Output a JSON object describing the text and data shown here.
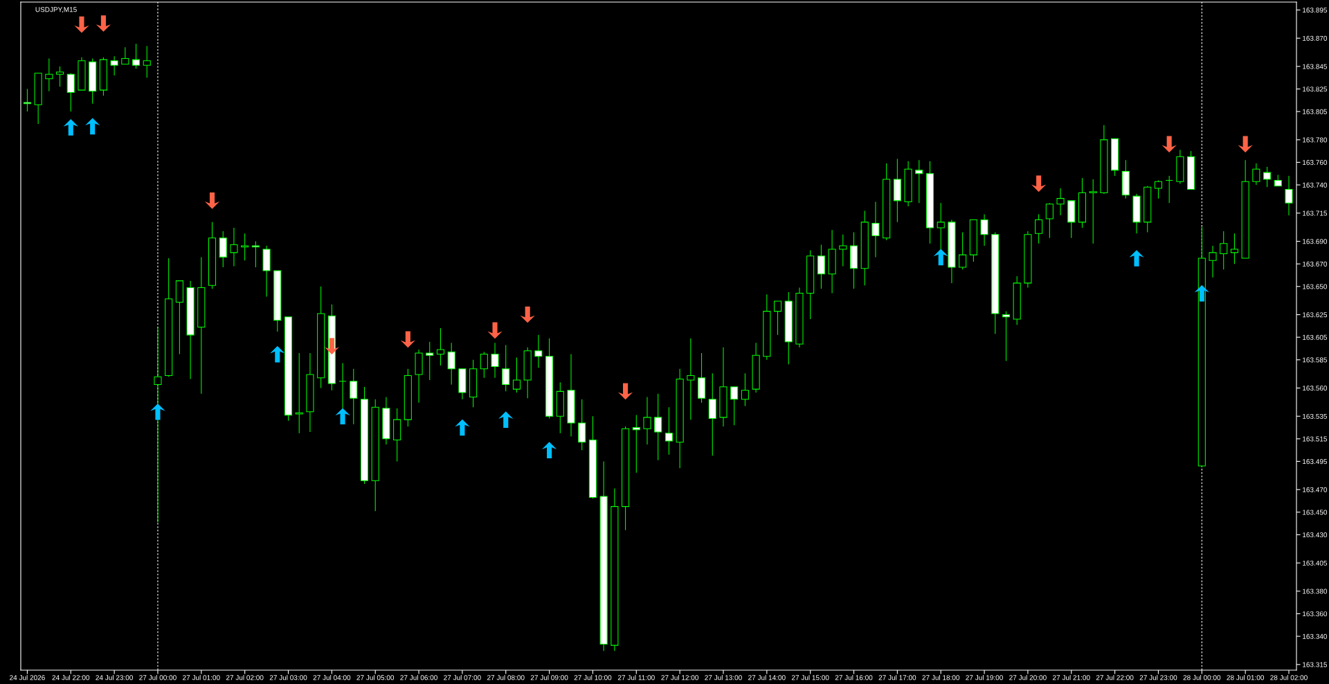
{
  "chart_data": {
    "type": "candlestick",
    "title": "USDJPY,M15",
    "categories": [
      "24 Jul 2026",
      null,
      null,
      null,
      "24 Jul 22:00",
      null,
      null,
      null,
      "24 Jul 23:00",
      null,
      null,
      null,
      "27 Jul 00:00",
      null,
      null,
      null,
      "27 Jul 01:00",
      null,
      null,
      null,
      "27 Jul 02:00",
      null,
      null,
      null,
      "27 Jul 03:00",
      null,
      null,
      null,
      "27 Jul 04:00",
      null,
      null,
      null,
      "27 Jul 05:00",
      null,
      null,
      null,
      "27 Jul 06:00",
      null,
      null,
      null,
      "27 Jul 07:00",
      null,
      null,
      null,
      "27 Jul 08:00",
      null,
      null,
      null,
      "27 Jul 09:00",
      null,
      null,
      null,
      "27 Jul 10:00",
      null,
      null,
      null,
      "27 Jul 11:00",
      null,
      null,
      null,
      "27 Jul 12:00",
      null,
      null,
      null,
      "27 Jul 13:00",
      null,
      null,
      null,
      "27 Jul 14:00",
      null,
      null,
      null,
      "27 Jul 15:00",
      null,
      null,
      null,
      "27 Jul 16:00",
      null,
      null,
      null,
      "27 Jul 17:00",
      null,
      null,
      null,
      "27 Jul 18:00",
      null,
      null,
      null,
      "27 Jul 19:00",
      null,
      null,
      null,
      "27 Jul 20:00",
      null,
      null,
      null,
      "27 Jul 21:00",
      null,
      null,
      null,
      "27 Jul 22:00",
      null,
      null,
      null,
      "27 Jul 23:00",
      null,
      null,
      null,
      "28 Jul 00:00",
      null,
      null,
      null,
      "28 Jul 01:00",
      null,
      null,
      null,
      "28 Jul 02:00"
    ],
    "ohlc": [
      [
        163.813,
        163.825,
        163.805,
        163.812
      ],
      [
        163.811,
        163.839,
        163.794,
        163.839
      ],
      [
        163.834,
        163.852,
        163.823,
        163.838
      ],
      [
        163.838,
        163.845,
        163.827,
        163.84
      ],
      [
        163.838,
        163.839,
        163.805,
        163.822
      ],
      [
        163.824,
        163.853,
        163.824,
        163.85
      ],
      [
        163.849,
        163.852,
        163.812,
        163.823
      ],
      [
        163.824,
        163.853,
        163.819,
        163.851
      ],
      [
        163.85,
        163.854,
        163.837,
        163.846
      ],
      [
        163.847,
        163.862,
        163.847,
        163.852
      ],
      [
        163.851,
        163.865,
        163.843,
        163.846
      ],
      [
        163.846,
        163.863,
        163.835,
        163.85
      ],
      [
        163.563,
        163.614,
        163.441,
        163.57
      ],
      [
        163.571,
        163.675,
        163.57,
        163.639
      ],
      [
        163.636,
        163.655,
        163.59,
        163.655
      ],
      [
        163.649,
        163.655,
        163.568,
        163.607
      ],
      [
        163.614,
        163.676,
        163.555,
        163.649
      ],
      [
        163.651,
        163.707,
        163.648,
        163.693
      ],
      [
        163.693,
        163.699,
        163.667,
        163.676
      ],
      [
        163.68,
        163.702,
        163.668,
        163.687
      ],
      [
        163.685,
        163.697,
        163.673,
        163.686
      ],
      [
        163.686,
        163.69,
        163.667,
        163.685
      ],
      [
        163.683,
        163.686,
        163.641,
        163.664
      ],
      [
        163.664,
        163.664,
        163.61,
        163.62
      ],
      [
        163.623,
        163.623,
        163.531,
        163.536
      ],
      [
        163.537,
        163.591,
        163.52,
        163.538
      ],
      [
        163.539,
        163.591,
        163.521,
        163.572
      ],
      [
        163.569,
        163.65,
        163.56,
        163.626
      ],
      [
        163.624,
        163.634,
        163.558,
        163.564
      ],
      [
        163.566,
        163.582,
        163.542,
        163.566
      ],
      [
        163.566,
        163.577,
        163.528,
        163.551
      ],
      [
        163.55,
        163.561,
        163.475,
        163.478
      ],
      [
        163.478,
        163.55,
        163.451,
        163.543
      ],
      [
        163.542,
        163.552,
        163.51,
        163.515
      ],
      [
        163.514,
        163.542,
        163.495,
        163.532
      ],
      [
        163.532,
        163.577,
        163.526,
        163.571
      ],
      [
        163.572,
        163.594,
        163.547,
        163.591
      ],
      [
        163.591,
        163.601,
        163.567,
        163.589
      ],
      [
        163.59,
        163.613,
        163.58,
        163.594
      ],
      [
        163.592,
        163.6,
        163.563,
        163.577
      ],
      [
        163.577,
        163.577,
        163.55,
        163.556
      ],
      [
        163.552,
        163.585,
        163.543,
        163.577
      ],
      [
        163.577,
        163.592,
        163.569,
        163.59
      ],
      [
        163.59,
        163.6,
        163.569,
        163.579
      ],
      [
        163.577,
        163.598,
        163.557,
        163.563
      ],
      [
        163.559,
        163.587,
        163.556,
        163.567
      ],
      [
        163.567,
        163.596,
        163.551,
        163.593
      ],
      [
        163.593,
        163.607,
        163.578,
        163.588
      ],
      [
        163.588,
        163.604,
        163.533,
        163.535
      ],
      [
        163.535,
        163.565,
        163.52,
        163.557
      ],
      [
        163.558,
        163.59,
        163.517,
        163.529
      ],
      [
        163.529,
        163.55,
        163.505,
        163.512
      ],
      [
        163.514,
        163.535,
        163.462,
        163.463
      ],
      [
        163.464,
        163.495,
        163.327,
        163.333
      ],
      [
        163.332,
        163.471,
        163.327,
        163.455
      ],
      [
        163.455,
        163.526,
        163.434,
        163.524
      ],
      [
        163.525,
        163.536,
        163.485,
        163.523
      ],
      [
        163.524,
        163.552,
        163.51,
        163.534
      ],
      [
        163.534,
        163.555,
        163.496,
        163.521
      ],
      [
        163.52,
        163.543,
        163.501,
        163.513
      ],
      [
        163.512,
        163.577,
        163.489,
        163.568
      ],
      [
        163.567,
        163.604,
        163.532,
        163.571
      ],
      [
        163.569,
        163.591,
        163.547,
        163.551
      ],
      [
        163.55,
        163.573,
        163.5,
        163.533
      ],
      [
        163.534,
        163.596,
        163.526,
        163.561
      ],
      [
        163.561,
        163.561,
        163.527,
        163.55
      ],
      [
        163.55,
        163.573,
        163.544,
        163.558
      ],
      [
        163.559,
        163.6,
        163.556,
        163.589
      ],
      [
        163.588,
        163.643,
        163.585,
        163.628
      ],
      [
        163.628,
        163.637,
        163.607,
        163.637
      ],
      [
        163.637,
        163.645,
        163.581,
        163.601
      ],
      [
        163.599,
        163.649,
        163.596,
        163.644
      ],
      [
        163.644,
        163.682,
        163.621,
        163.677
      ],
      [
        163.677,
        163.687,
        163.648,
        163.661
      ],
      [
        163.661,
        163.7,
        163.644,
        163.683
      ],
      [
        163.683,
        163.696,
        163.668,
        163.686
      ],
      [
        163.686,
        163.698,
        163.648,
        163.666
      ],
      [
        163.666,
        163.717,
        163.651,
        163.707
      ],
      [
        163.706,
        163.725,
        163.676,
        163.695
      ],
      [
        163.693,
        163.759,
        163.691,
        163.745
      ],
      [
        163.745,
        163.763,
        163.707,
        163.726
      ],
      [
        163.725,
        163.761,
        163.721,
        163.754
      ],
      [
        163.753,
        163.762,
        163.724,
        163.75
      ],
      [
        163.75,
        163.761,
        163.688,
        163.702
      ],
      [
        163.702,
        163.724,
        163.683,
        163.707
      ],
      [
        163.707,
        163.709,
        163.653,
        163.667
      ],
      [
        163.667,
        163.698,
        163.665,
        163.678
      ],
      [
        163.678,
        163.709,
        163.672,
        163.709
      ],
      [
        163.709,
        163.714,
        163.686,
        163.696
      ],
      [
        163.696,
        163.698,
        163.608,
        163.626
      ],
      [
        163.625,
        163.628,
        163.584,
        163.623
      ],
      [
        163.621,
        163.659,
        163.616,
        163.653
      ],
      [
        163.653,
        163.699,
        163.649,
        163.696
      ],
      [
        163.697,
        163.714,
        163.688,
        163.709
      ],
      [
        163.71,
        163.724,
        163.693,
        163.723
      ],
      [
        163.723,
        163.737,
        163.713,
        163.728
      ],
      [
        163.726,
        163.726,
        163.693,
        163.707
      ],
      [
        163.707,
        163.746,
        163.702,
        163.733
      ],
      [
        163.733,
        163.745,
        163.688,
        163.734
      ],
      [
        163.733,
        163.793,
        163.732,
        163.78
      ],
      [
        163.781,
        163.781,
        163.748,
        163.753
      ],
      [
        163.752,
        163.762,
        163.728,
        163.731
      ],
      [
        163.73,
        163.732,
        163.697,
        163.707
      ],
      [
        163.707,
        163.739,
        163.698,
        163.738
      ],
      [
        163.737,
        163.744,
        163.728,
        163.743
      ],
      [
        163.744,
        163.748,
        163.724,
        163.744
      ],
      [
        163.743,
        163.771,
        163.741,
        163.765
      ],
      [
        163.765,
        163.77,
        163.736,
        163.736
      ],
      [
        163.491,
        163.703,
        163.49,
        163.675
      ],
      [
        163.673,
        163.686,
        163.658,
        163.68
      ],
      [
        163.679,
        163.699,
        163.665,
        163.688
      ],
      [
        163.68,
        163.697,
        163.67,
        163.683
      ],
      [
        163.675,
        163.762,
        163.675,
        163.743
      ],
      [
        163.743,
        163.759,
        163.74,
        163.754
      ],
      [
        163.751,
        163.756,
        163.738,
        163.745
      ],
      [
        163.744,
        163.749,
        163.739,
        163.739
      ],
      [
        163.736,
        163.748,
        163.713,
        163.724
      ]
    ],
    "color": "#00ff00",
    "colors": [
      "#ffffff",
      "#000000",
      "#000000",
      "#000000",
      "#ffffff",
      "#000000",
      "#ffffff",
      "#000000",
      "#ffffff",
      "#000000",
      "#ffffff",
      "#000000",
      "#000000",
      "#000000",
      "#000000",
      "#ffffff",
      "#000000",
      "#000000",
      "#ffffff",
      "#000000",
      "#000000",
      "#ffffff",
      "#ffffff",
      "#ffffff",
      "#ffffff",
      "#000000",
      "#000000",
      "#000000",
      "#ffffff",
      "#00ff00",
      "#ffffff",
      "#ffffff",
      "#000000",
      "#ffffff",
      "#000000",
      "#000000",
      "#000000",
      "#ffffff",
      "#000000",
      "#ffffff",
      "#ffffff",
      "#000000",
      "#000000",
      "#ffffff",
      "#ffffff",
      "#000000",
      "#000000",
      "#ffffff",
      "#ffffff",
      "#000000",
      "#ffffff",
      "#ffffff",
      "#ffffff",
      "#ffffff",
      "#000000",
      "#000000",
      "#ffffff",
      "#000000",
      "#ffffff",
      "#ffffff",
      "#000000",
      "#000000",
      "#ffffff",
      "#ffffff",
      "#000000",
      "#ffffff",
      "#000000",
      "#000000",
      "#000000",
      "#000000",
      "#ffffff",
      "#000000",
      "#000000",
      "#ffffff",
      "#000000",
      "#000000",
      "#ffffff",
      "#000000",
      "#ffffff",
      "#000000",
      "#ffffff",
      "#000000",
      "#ffffff",
      "#ffffff",
      "#000000",
      "#ffffff",
      "#000000",
      "#000000",
      "#ffffff",
      "#ffffff",
      "#ffffff",
      "#000000",
      "#000000",
      "#000000",
      "#000000",
      "#000000",
      "#ffffff",
      "#000000",
      "#000000",
      "#000000",
      "#ffffff",
      "#ffffff",
      "#ffffff",
      "#000000",
      "#000000",
      "#00ff00",
      "#000000",
      "#ffffff",
      "#000000",
      "#000000",
      "#000000",
      "#000000",
      "#000000",
      "#000000",
      "#ffffff",
      "#ffffff",
      "#ffffff"
    ],
    "series": [
      {
        "type": "scatter",
        "color": "#00bfff",
        "marker": "triangle",
        "values": [
          null,
          null,
          null,
          null,
          163.791,
          null,
          163.792,
          null,
          null,
          null,
          null,
          null,
          163.539,
          null,
          null,
          null,
          null,
          null,
          null,
          null,
          null,
          null,
          null,
          163.59,
          null,
          null,
          null,
          null,
          null,
          163.535,
          null,
          null,
          null,
          null,
          null,
          null,
          null,
          null,
          null,
          null,
          163.525,
          null,
          null,
          null,
          163.532,
          null,
          null,
          null,
          163.505,
          null,
          null,
          null,
          null,
          null,
          null,
          null,
          null,
          null,
          null,
          null,
          null,
          null,
          null,
          null,
          null,
          null,
          null,
          null,
          null,
          null,
          null,
          null,
          null,
          null,
          null,
          null,
          null,
          null,
          null,
          null,
          null,
          null,
          null,
          null,
          163.676,
          null,
          null,
          null,
          null,
          null,
          null,
          null,
          null,
          null,
          null,
          null,
          null,
          null,
          null,
          null,
          null,
          null,
          163.675,
          null,
          null,
          null,
          null,
          null,
          163.644,
          null,
          null,
          null,
          null,
          null,
          null,
          null,
          null
        ]
      },
      {
        "type": "scatter",
        "color": "#ff6347",
        "marker": "triangle",
        "values": [
          null,
          null,
          null,
          null,
          null,
          163.882,
          null,
          163.883,
          null,
          null,
          null,
          null,
          null,
          null,
          null,
          null,
          null,
          163.726,
          null,
          null,
          null,
          null,
          null,
          null,
          null,
          null,
          null,
          null,
          163.597,
          null,
          null,
          null,
          null,
          null,
          null,
          163.603,
          null,
          null,
          null,
          null,
          null,
          null,
          null,
          163.611,
          null,
          null,
          163.625,
          null,
          null,
          null,
          null,
          null,
          null,
          null,
          null,
          163.557,
          null,
          null,
          null,
          null,
          null,
          null,
          null,
          null,
          null,
          null,
          null,
          null,
          null,
          null,
          null,
          null,
          null,
          null,
          null,
          null,
          null,
          null,
          null,
          null,
          null,
          null,
          null,
          null,
          null,
          null,
          null,
          null,
          null,
          null,
          null,
          null,
          null,
          163.741,
          null,
          null,
          null,
          null,
          null,
          null,
          null,
          null,
          null,
          null,
          null,
          163.776,
          null,
          null,
          null,
          null,
          null,
          null,
          163.776,
          null,
          null,
          null,
          null
        ]
      }
    ],
    "ylim": [
      163.31,
      163.902
    ],
    "yticks": [
      163.895,
      {
        "value": 163.87,
        "label": "163.870"
      },
      163.845,
      163.825,
      163.805,
      {
        "value": 163.78,
        "label": "163.780"
      },
      {
        "value": 163.76,
        "label": "163.760"
      },
      {
        "value": 163.74,
        "label": "163.740"
      },
      163.715,
      {
        "value": 163.69,
        "label": "163.690"
      },
      {
        "value": 163.67,
        "label": "163.670"
      },
      {
        "value": 163.65,
        "label": "163.650"
      },
      163.625,
      163.605,
      163.585,
      {
        "value": 163.56,
        "label": "163.560"
      },
      163.535,
      163.515,
      163.495,
      {
        "value": 163.47,
        "label": "163.470"
      },
      {
        "value": 163.45,
        "label": "163.450"
      },
      {
        "value": 163.43,
        "label": "163.430"
      },
      163.405,
      {
        "value": 163.38,
        "label": "163.380"
      },
      {
        "value": 163.36,
        "label": "163.360"
      },
      {
        "value": 163.34,
        "label": "163.340"
      },
      163.315
    ],
    "ref_lines": [
      {
        "axis": "x",
        "value": "27 Jul 00:00",
        "color": "#ffffff",
        "line_style": "dotted"
      },
      {
        "axis": "x",
        "value": "28 Jul 00:00",
        "color": "#ffffff",
        "line_style": "dotted"
      }
    ]
  }
}
